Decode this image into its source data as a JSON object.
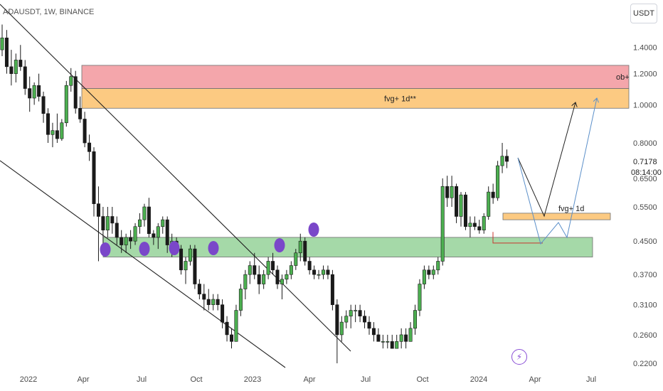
{
  "header": {
    "symbol_line": "ADAUSDT, 1W, BINANCE"
  },
  "currency_button": "USDT",
  "price_badge": {
    "price": "0.7178",
    "countdown": "08:14:00"
  },
  "chart_data": {
    "type": "candlestick",
    "symbol": "ADAUSDT",
    "interval": "1W",
    "exchange": "BINANCE",
    "y_scale": "log",
    "ylim": [
      0.195,
      1.7
    ],
    "y_ticks": [
      "1.4000",
      "1.2000",
      "1.0000",
      "0.8000",
      "0.6500",
      "0.5500",
      "0.4500",
      "0.3700",
      "0.3100",
      "0.2600",
      "0.2200"
    ],
    "x_ticks": [
      "2022",
      "Apr",
      "Jul",
      "Oct",
      "2023",
      "Apr",
      "Jul",
      "Oct",
      "2024",
      "Apr",
      "Jul"
    ],
    "last_price": 0.7178,
    "candles": [
      [
        1.38,
        1.6,
        1.33,
        1.48
      ],
      [
        1.48,
        1.55,
        1.2,
        1.25
      ],
      [
        1.25,
        1.38,
        1.12,
        1.2
      ],
      [
        1.2,
        1.35,
        1.14,
        1.3
      ],
      [
        1.3,
        1.42,
        1.22,
        1.25
      ],
      [
        1.25,
        1.3,
        1.06,
        1.1
      ],
      [
        1.1,
        1.18,
        0.96,
        1.04
      ],
      [
        1.04,
        1.14,
        1.0,
        1.12
      ],
      [
        1.12,
        1.2,
        1.02,
        1.05
      ],
      [
        1.05,
        1.08,
        0.9,
        0.95
      ],
      [
        0.95,
        0.98,
        0.8,
        0.84
      ],
      [
        0.84,
        0.9,
        0.78,
        0.86
      ],
      [
        0.86,
        0.95,
        0.8,
        0.82
      ],
      [
        0.82,
        0.92,
        0.81,
        0.9
      ],
      [
        0.9,
        1.15,
        0.88,
        1.12
      ],
      [
        1.12,
        1.24,
        1.08,
        1.18
      ],
      [
        1.18,
        1.22,
        0.95,
        0.98
      ],
      [
        0.98,
        1.05,
        0.9,
        0.92
      ],
      [
        0.92,
        0.96,
        0.78,
        0.8
      ],
      [
        0.8,
        0.84,
        0.72,
        0.76
      ],
      [
        0.76,
        0.78,
        0.52,
        0.56
      ],
      [
        0.56,
        0.62,
        0.4,
        0.52
      ],
      [
        0.52,
        0.55,
        0.44,
        0.48
      ],
      [
        0.48,
        0.55,
        0.46,
        0.52
      ],
      [
        0.52,
        0.55,
        0.47,
        0.5
      ],
      [
        0.5,
        0.52,
        0.44,
        0.46
      ],
      [
        0.46,
        0.48,
        0.42,
        0.44
      ],
      [
        0.44,
        0.47,
        0.42,
        0.46
      ],
      [
        0.46,
        0.48,
        0.43,
        0.45
      ],
      [
        0.45,
        0.5,
        0.44,
        0.49
      ],
      [
        0.49,
        0.53,
        0.47,
        0.51
      ],
      [
        0.51,
        0.56,
        0.49,
        0.55
      ],
      [
        0.55,
        0.58,
        0.46,
        0.47
      ],
      [
        0.47,
        0.48,
        0.44,
        0.46
      ],
      [
        0.46,
        0.5,
        0.43,
        0.49
      ],
      [
        0.49,
        0.52,
        0.47,
        0.51
      ],
      [
        0.51,
        0.52,
        0.42,
        0.44
      ],
      [
        0.44,
        0.47,
        0.41,
        0.45
      ],
      [
        0.45,
        0.46,
        0.42,
        0.43
      ],
      [
        0.43,
        0.44,
        0.37,
        0.38
      ],
      [
        0.38,
        0.41,
        0.35,
        0.4
      ],
      [
        0.4,
        0.44,
        0.39,
        0.43
      ],
      [
        0.43,
        0.44,
        0.34,
        0.35
      ],
      [
        0.35,
        0.36,
        0.32,
        0.33
      ],
      [
        0.33,
        0.35,
        0.3,
        0.32
      ],
      [
        0.32,
        0.34,
        0.3,
        0.31
      ],
      [
        0.31,
        0.33,
        0.3,
        0.32
      ],
      [
        0.32,
        0.33,
        0.3,
        0.31
      ],
      [
        0.31,
        0.32,
        0.27,
        0.28
      ],
      [
        0.28,
        0.29,
        0.25,
        0.26
      ],
      [
        0.26,
        0.27,
        0.24,
        0.25
      ],
      [
        0.25,
        0.31,
        0.25,
        0.3
      ],
      [
        0.3,
        0.35,
        0.29,
        0.34
      ],
      [
        0.34,
        0.38,
        0.32,
        0.37
      ],
      [
        0.37,
        0.4,
        0.35,
        0.39
      ],
      [
        0.39,
        0.42,
        0.36,
        0.37
      ],
      [
        0.37,
        0.39,
        0.33,
        0.35
      ],
      [
        0.35,
        0.38,
        0.34,
        0.37
      ],
      [
        0.37,
        0.41,
        0.36,
        0.4
      ],
      [
        0.4,
        0.42,
        0.37,
        0.38
      ],
      [
        0.38,
        0.39,
        0.34,
        0.35
      ],
      [
        0.35,
        0.37,
        0.32,
        0.36
      ],
      [
        0.36,
        0.38,
        0.35,
        0.37
      ],
      [
        0.37,
        0.4,
        0.36,
        0.39
      ],
      [
        0.39,
        0.43,
        0.38,
        0.42
      ],
      [
        0.42,
        0.47,
        0.4,
        0.45
      ],
      [
        0.45,
        0.46,
        0.39,
        0.4
      ],
      [
        0.4,
        0.41,
        0.37,
        0.38
      ],
      [
        0.38,
        0.39,
        0.36,
        0.37
      ],
      [
        0.37,
        0.38,
        0.36,
        0.37
      ],
      [
        0.37,
        0.39,
        0.36,
        0.38
      ],
      [
        0.38,
        0.39,
        0.36,
        0.37
      ],
      [
        0.37,
        0.38,
        0.3,
        0.31
      ],
      [
        0.31,
        0.32,
        0.22,
        0.26
      ],
      [
        0.26,
        0.29,
        0.25,
        0.28
      ],
      [
        0.28,
        0.3,
        0.27,
        0.29
      ],
      [
        0.29,
        0.31,
        0.27,
        0.3
      ],
      [
        0.3,
        0.31,
        0.28,
        0.3
      ],
      [
        0.3,
        0.31,
        0.28,
        0.29
      ],
      [
        0.29,
        0.3,
        0.27,
        0.28
      ],
      [
        0.28,
        0.29,
        0.26,
        0.27
      ],
      [
        0.27,
        0.28,
        0.25,
        0.26
      ],
      [
        0.26,
        0.27,
        0.25,
        0.25
      ],
      [
        0.25,
        0.26,
        0.24,
        0.25
      ],
      [
        0.25,
        0.26,
        0.24,
        0.25
      ],
      [
        0.25,
        0.26,
        0.24,
        0.24
      ],
      [
        0.24,
        0.26,
        0.24,
        0.25
      ],
      [
        0.25,
        0.27,
        0.24,
        0.26
      ],
      [
        0.26,
        0.27,
        0.24,
        0.25
      ],
      [
        0.25,
        0.28,
        0.25,
        0.27
      ],
      [
        0.27,
        0.31,
        0.26,
        0.3
      ],
      [
        0.3,
        0.36,
        0.29,
        0.35
      ],
      [
        0.35,
        0.39,
        0.34,
        0.38
      ],
      [
        0.38,
        0.39,
        0.36,
        0.37
      ],
      [
        0.37,
        0.39,
        0.36,
        0.38
      ],
      [
        0.38,
        0.41,
        0.37,
        0.4
      ],
      [
        0.4,
        0.65,
        0.39,
        0.62
      ],
      [
        0.62,
        0.66,
        0.55,
        0.58
      ],
      [
        0.58,
        0.66,
        0.55,
        0.62
      ],
      [
        0.62,
        0.63,
        0.5,
        0.52
      ],
      [
        0.52,
        0.6,
        0.49,
        0.59
      ],
      [
        0.59,
        0.6,
        0.48,
        0.49
      ],
      [
        0.49,
        0.52,
        0.46,
        0.5
      ],
      [
        0.5,
        0.52,
        0.48,
        0.49
      ],
      [
        0.49,
        0.51,
        0.47,
        0.48
      ],
      [
        0.48,
        0.53,
        0.47,
        0.52
      ],
      [
        0.52,
        0.62,
        0.51,
        0.6
      ],
      [
        0.6,
        0.63,
        0.56,
        0.58
      ],
      [
        0.58,
        0.72,
        0.57,
        0.7
      ],
      [
        0.7,
        0.8,
        0.67,
        0.74
      ],
      [
        0.74,
        0.77,
        0.69,
        0.7178
      ]
    ],
    "zones": [
      {
        "label": "ob+",
        "low": 1.1,
        "high": 1.26,
        "color": "#f4a6ab"
      },
      {
        "label": "fvg+ 1d**",
        "low": 0.98,
        "high": 1.1,
        "color": "#fcca82"
      },
      {
        "label": "fvg+ 1d",
        "low": 0.51,
        "high": 0.53,
        "color": "#fcca82"
      },
      {
        "label": "",
        "low": 0.41,
        "high": 0.46,
        "color": "#a5d9a8"
      }
    ],
    "candle_colors": {
      "up": "#4caf50",
      "down": "#1a1a1a"
    },
    "marker_color": "#7a47c9"
  }
}
